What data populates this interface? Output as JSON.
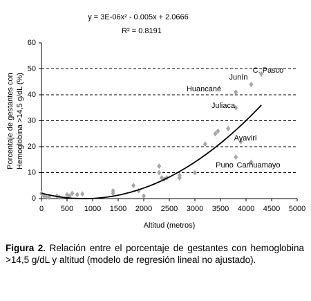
{
  "chart_data": {
    "type": "scatter",
    "equation": "y = 3E-06x² - 0.005x + 2.0666",
    "r_squared": "R² = 0.8191",
    "x_label": "Altitud (metros)",
    "y_label": [
      "Porcentaje de gestantes con",
      "Hemoglobina >14,5 g/dL (%)"
    ],
    "xlim": [
      0,
      5000
    ],
    "xticks": [
      0,
      500,
      1000,
      1500,
      2000,
      2500,
      3000,
      3500,
      4000,
      4500,
      5000
    ],
    "ylim": [
      0,
      60
    ],
    "yticks": [
      0,
      10,
      20,
      30,
      40,
      50,
      60
    ],
    "grid": true,
    "color": "#a6a6a6",
    "x": [
      0,
      50,
      100,
      150,
      300,
      350,
      500,
      550,
      600,
      700,
      800,
      1400,
      1400,
      1800,
      1900,
      2000,
      2300,
      2300,
      2350,
      2400,
      2450,
      2700,
      2700,
      3000,
      3200,
      3400,
      3450,
      3650,
      3800,
      3800,
      3800,
      3900,
      4100,
      4100,
      4300
    ],
    "y": [
      2,
      1,
      0.5,
      0.5,
      1,
      0.5,
      1.5,
      1,
      2,
      1.5,
      1.8,
      2,
      3,
      5,
      3,
      1,
      12.5,
      10,
      8,
      7.5,
      8,
      8,
      9,
      10,
      21,
      25,
      26,
      27,
      35,
      41,
      16,
      22,
      14,
      44,
      48
    ],
    "trendline": {
      "coefficients": [
        3e-06,
        -0.005,
        2.0666
      ],
      "x_range": [
        0,
        4300
      ],
      "color": "#000000"
    },
    "annotations": [
      "C. Pasco",
      "Junín",
      "Huancané",
      "Juliaca",
      "Ayaviri",
      "Puno",
      "Carhuamayo"
    ]
  },
  "caption": {
    "label": "Figura 2.",
    "text": "Relación entre el porcentaje de gestantes con hemoglobina >14,5 g/dL y altitud (modelo de regresión lineal no ajustado)."
  }
}
